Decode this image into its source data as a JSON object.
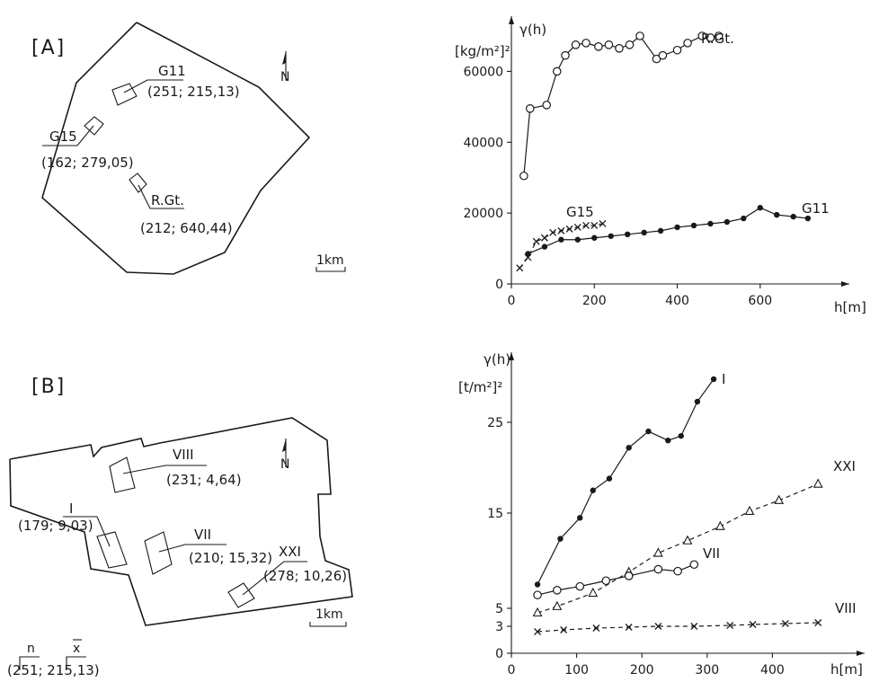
{
  "map_a": {
    "label": "[A]",
    "north": "N",
    "scale": "1km",
    "areas": [
      {
        "name": "G11",
        "stats": "(251; 215,13)"
      },
      {
        "name": "G15",
        "stats": "(162; 279,05)"
      },
      {
        "name": "R.Gt.",
        "stats": "(212; 640,44)"
      }
    ]
  },
  "map_b": {
    "label": "[B]",
    "north": "N",
    "scale": "1km",
    "areas": [
      {
        "name": "VIII",
        "stats": "(231; 4,64)"
      },
      {
        "name": "I",
        "stats": "(179; 9,03)"
      },
      {
        "name": "VII",
        "stats": "(210; 15,32)"
      },
      {
        "name": "XXI",
        "stats": "(278; 10,26)"
      }
    ],
    "legend": {
      "n_symbol": "n",
      "x_symbol": "x",
      "example": "(251; 215,13)"
    }
  },
  "chart_data": [
    {
      "type": "line",
      "ylabel": "γ(h)",
      "yunit": "[kg/m²]²",
      "xlabel": "h[m]",
      "xlim": [
        0,
        750
      ],
      "ylim": [
        0,
        70000
      ],
      "xticks": [
        0,
        200,
        400,
        600
      ],
      "yticks": [
        0,
        20000,
        40000,
        60000
      ],
      "yticklabels": [
        "0",
        "20000",
        "40000",
        "60000"
      ],
      "series": [
        {
          "name": "R.Gt.",
          "marker": "circle-open",
          "x": [
            30,
            45,
            85,
            110,
            130,
            155,
            180,
            210,
            235,
            260,
            285,
            310,
            350,
            365,
            400,
            425,
            460,
            480,
            500
          ],
          "y": [
            30500,
            49500,
            50500,
            60000,
            64500,
            67500,
            68000,
            67000,
            67500,
            66500,
            67500,
            70000,
            63500,
            64500,
            66000,
            68000,
            70000,
            69500,
            70000
          ]
        },
        {
          "name": "G15",
          "marker": "x",
          "x": [
            20,
            40,
            60,
            80,
            100,
            120,
            140,
            160,
            180,
            200,
            220
          ],
          "y": [
            4500,
            7500,
            12000,
            13000,
            14500,
            15000,
            15500,
            16000,
            16500,
            16500,
            17000
          ]
        },
        {
          "name": "G11",
          "marker": "dot",
          "x": [
            40,
            80,
            120,
            160,
            200,
            240,
            280,
            320,
            360,
            400,
            440,
            480,
            520,
            560,
            600,
            640,
            680,
            715
          ],
          "y": [
            8500,
            10500,
            12500,
            12500,
            13000,
            13500,
            14000,
            14500,
            15000,
            16000,
            16500,
            17000,
            17500,
            18500,
            21500,
            19500,
            19000,
            18500
          ]
        }
      ]
    },
    {
      "type": "line",
      "ylabel": "γ(h)",
      "yunit": "[t/m²]²",
      "xlabel": "h[m]",
      "xlim": [
        0,
        500
      ],
      "ylim": [
        0,
        30
      ],
      "xticks": [
        0,
        100,
        200,
        300,
        400
      ],
      "yticks": [
        0,
        3,
        5,
        15,
        25
      ],
      "series": [
        {
          "name": "I",
          "marker": "dot",
          "x": [
            40,
            75,
            105,
            125,
            150,
            180,
            210,
            240,
            260,
            285,
            310
          ],
          "y": [
            7.5,
            12.3,
            14.5,
            17.5,
            18.8,
            22.2,
            24.0,
            23.0,
            23.5,
            27.3,
            29.8
          ]
        },
        {
          "name": "XXI",
          "marker": "triangle-open",
          "x": [
            40,
            70,
            125,
            180,
            225,
            270,
            320,
            365,
            410,
            470
          ],
          "y": [
            4.5,
            5.2,
            6.6,
            8.8,
            10.8,
            12.1,
            13.6,
            15.2,
            16.4,
            18.2
          ]
        },
        {
          "name": "VII",
          "marker": "circle-open",
          "x": [
            40,
            70,
            105,
            145,
            180,
            225,
            255,
            280
          ],
          "y": [
            6.4,
            6.9,
            7.3,
            7.9,
            8.4,
            9.1,
            8.9,
            9.6
          ]
        },
        {
          "name": "VIII",
          "marker": "x",
          "x": [
            40,
            80,
            130,
            180,
            225,
            280,
            335,
            370,
            420,
            470
          ],
          "y": [
            2.4,
            2.6,
            2.8,
            2.9,
            3.0,
            3.0,
            3.1,
            3.2,
            3.3,
            3.4
          ]
        }
      ]
    }
  ]
}
